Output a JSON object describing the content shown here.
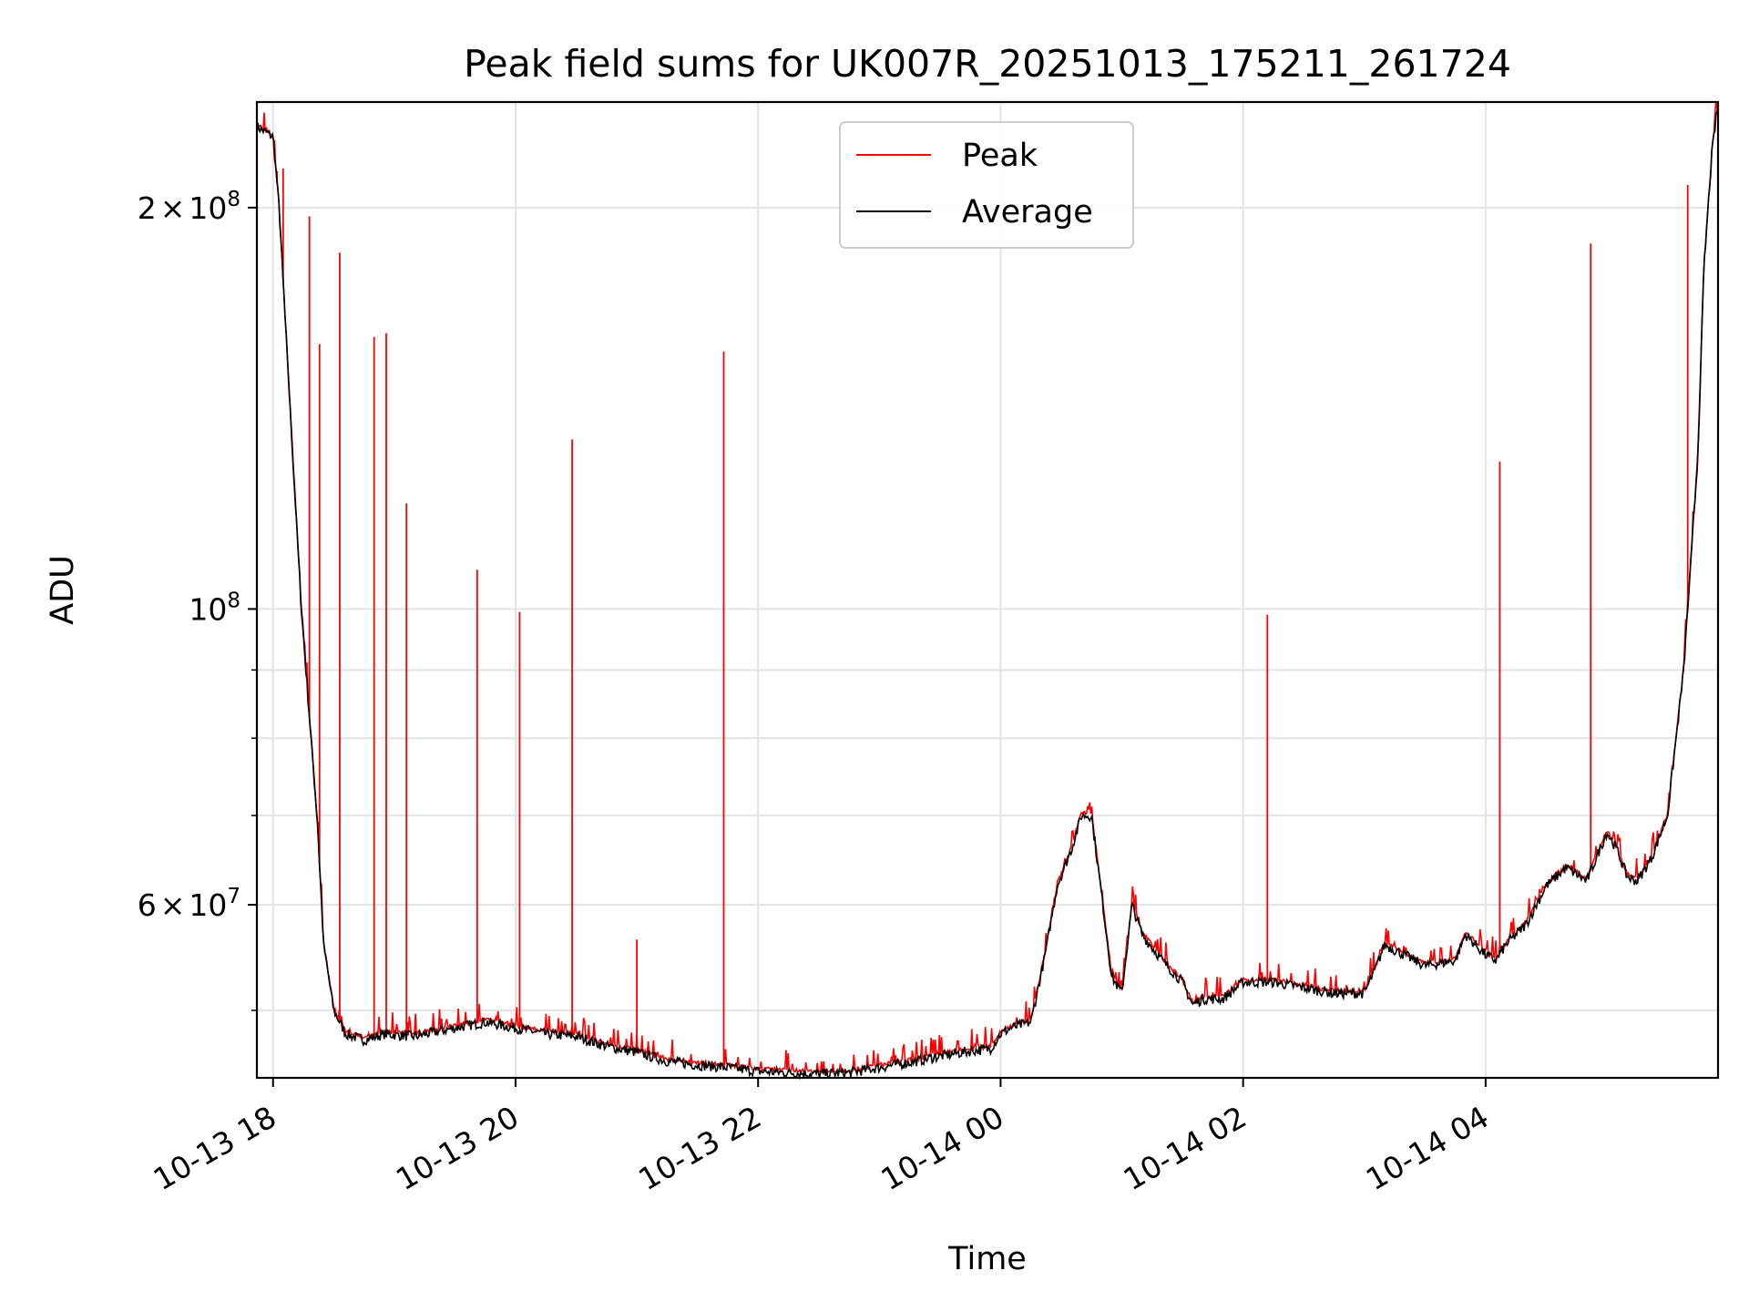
{
  "chart_data": {
    "type": "line",
    "title": "Peak field sums for UK007R_20251013_175211_261724",
    "xlabel": "Time",
    "ylabel": "ADU",
    "y_scale": "log",
    "ylim": [
      44500000,
      240000000
    ],
    "xlim": [
      "2025-10-13 17:52",
      "2025-10-14 05:55"
    ],
    "x_ticks": [
      {
        "t": "2025-10-13 18:00",
        "label": "10-13 18"
      },
      {
        "t": "2025-10-13 20:00",
        "label": "10-13 20"
      },
      {
        "t": "2025-10-13 22:00",
        "label": "10-13 22"
      },
      {
        "t": "2025-10-14 00:00",
        "label": "10-14 00"
      },
      {
        "t": "2025-10-14 02:00",
        "label": "10-14 02"
      },
      {
        "t": "2025-10-14 04:00",
        "label": "10-14 04"
      }
    ],
    "y_ticks": [
      {
        "value": 60000000,
        "mantissa": "6",
        "exponent": "7"
      },
      {
        "value": 100000000,
        "mantissa": "",
        "exponent": "8"
      },
      {
        "value": 200000000,
        "mantissa": "2",
        "exponent": "8"
      }
    ],
    "y_minor_ticks": [
      50000000,
      70000000,
      80000000,
      90000000
    ],
    "grid": true,
    "legend_position": "top-center",
    "series": [
      {
        "name": "Average",
        "color": "#000000",
        "x": [
          "2025-10-13 17:52",
          "2025-10-13 17:56",
          "2025-10-13 18:00",
          "2025-10-13 18:03",
          "2025-10-13 18:06",
          "2025-10-13 18:10",
          "2025-10-13 18:14",
          "2025-10-13 18:18",
          "2025-10-13 18:22",
          "2025-10-13 18:25",
          "2025-10-13 18:30",
          "2025-10-13 18:36",
          "2025-10-13 18:45",
          "2025-10-13 18:55",
          "2025-10-13 19:10",
          "2025-10-13 19:30",
          "2025-10-13 19:45",
          "2025-10-13 20:00",
          "2025-10-13 20:15",
          "2025-10-13 20:30",
          "2025-10-13 20:45",
          "2025-10-13 21:00",
          "2025-10-13 21:15",
          "2025-10-13 21:30",
          "2025-10-13 21:45",
          "2025-10-13 22:00",
          "2025-10-13 22:15",
          "2025-10-13 22:30",
          "2025-10-13 22:45",
          "2025-10-13 23:00",
          "2025-10-13 23:15",
          "2025-10-13 23:30",
          "2025-10-13 23:45",
          "2025-10-13 23:55",
          "2025-10-14 00:00",
          "2025-10-14 00:05",
          "2025-10-14 00:15",
          "2025-10-14 00:22",
          "2025-10-14 00:28",
          "2025-10-14 00:35",
          "2025-10-14 00:40",
          "2025-10-14 00:45",
          "2025-10-14 00:50",
          "2025-10-14 00:55",
          "2025-10-14 01:00",
          "2025-10-14 01:05",
          "2025-10-14 01:10",
          "2025-10-14 01:20",
          "2025-10-14 01:30",
          "2025-10-14 01:35",
          "2025-10-14 01:40",
          "2025-10-14 01:50",
          "2025-10-14 02:00",
          "2025-10-14 02:15",
          "2025-10-14 02:30",
          "2025-10-14 02:45",
          "2025-10-14 03:00",
          "2025-10-14 03:05",
          "2025-10-14 03:10",
          "2025-10-14 03:20",
          "2025-10-14 03:30",
          "2025-10-14 03:45",
          "2025-10-14 03:50",
          "2025-10-14 04:00",
          "2025-10-14 04:05",
          "2025-10-14 04:10",
          "2025-10-14 04:20",
          "2025-10-14 04:30",
          "2025-10-14 04:40",
          "2025-10-14 04:50",
          "2025-10-14 05:00",
          "2025-10-14 05:05",
          "2025-10-14 05:10",
          "2025-10-14 05:15",
          "2025-10-14 05:22",
          "2025-10-14 05:30",
          "2025-10-14 05:38",
          "2025-10-14 05:45",
          "2025-10-14 05:48",
          "2025-10-14 05:52",
          "2025-10-14 05:55"
        ],
        "y": [
          230000000,
          228000000,
          226000000,
          200000000,
          165000000,
          128000000,
          100000000,
          83000000,
          69000000,
          56000000,
          50000000,
          48000000,
          47500000,
          48000000,
          47800000,
          48500000,
          49000000,
          48500000,
          48000000,
          47800000,
          47000000,
          46500000,
          45800000,
          45500000,
          45300000,
          45000000,
          44900000,
          44800000,
          44900000,
          45300000,
          45700000,
          46200000,
          46600000,
          46800000,
          48000000,
          48500000,
          49000000,
          55000000,
          62000000,
          66000000,
          70000000,
          70000000,
          61000000,
          53000000,
          51500000,
          60000000,
          57000000,
          54500000,
          52500000,
          50500000,
          51000000,
          51000000,
          52500000,
          52500000,
          52000000,
          51500000,
          51500000,
          53500000,
          56000000,
          55000000,
          54000000,
          54500000,
          57000000,
          55000000,
          54500000,
          56000000,
          58000000,
          62000000,
          64000000,
          62500000,
          68000000,
          66000000,
          63000000,
          62500000,
          65000000,
          70000000,
          90000000,
          130000000,
          180000000,
          220000000,
          240000000
        ]
      },
      {
        "name": "Peak",
        "color": "#ff0000",
        "spikes": [
          {
            "t": "2025-10-13 18:02",
            "y": 213000000
          },
          {
            "t": "2025-10-13 18:05",
            "y": 214000000
          },
          {
            "t": "2025-10-13 18:18",
            "y": 197000000
          },
          {
            "t": "2025-10-13 18:23",
            "y": 158000000
          },
          {
            "t": "2025-10-13 18:33",
            "y": 185000000
          },
          {
            "t": "2025-10-13 18:50",
            "y": 160000000
          },
          {
            "t": "2025-10-13 18:56",
            "y": 161000000
          },
          {
            "t": "2025-10-13 19:06",
            "y": 120000000
          },
          {
            "t": "2025-10-13 19:41",
            "y": 107000000
          },
          {
            "t": "2025-10-13 20:02",
            "y": 99500000
          },
          {
            "t": "2025-10-13 20:28",
            "y": 134000000
          },
          {
            "t": "2025-10-13 21:00",
            "y": 56500000
          },
          {
            "t": "2025-10-13 21:43",
            "y": 156000000
          },
          {
            "t": "2025-10-14 02:12",
            "y": 99000000
          },
          {
            "t": "2025-10-14 04:07",
            "y": 129000000
          },
          {
            "t": "2025-10-14 04:52",
            "y": 188000000
          },
          {
            "t": "2025-10-14 05:40",
            "y": 208000000
          }
        ]
      }
    ]
  }
}
